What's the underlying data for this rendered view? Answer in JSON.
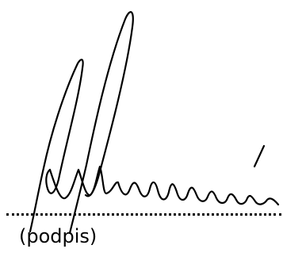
{
  "signature": {
    "caption": "(podpis)",
    "ink_color": "#000000",
    "line_style": "dotted"
  }
}
